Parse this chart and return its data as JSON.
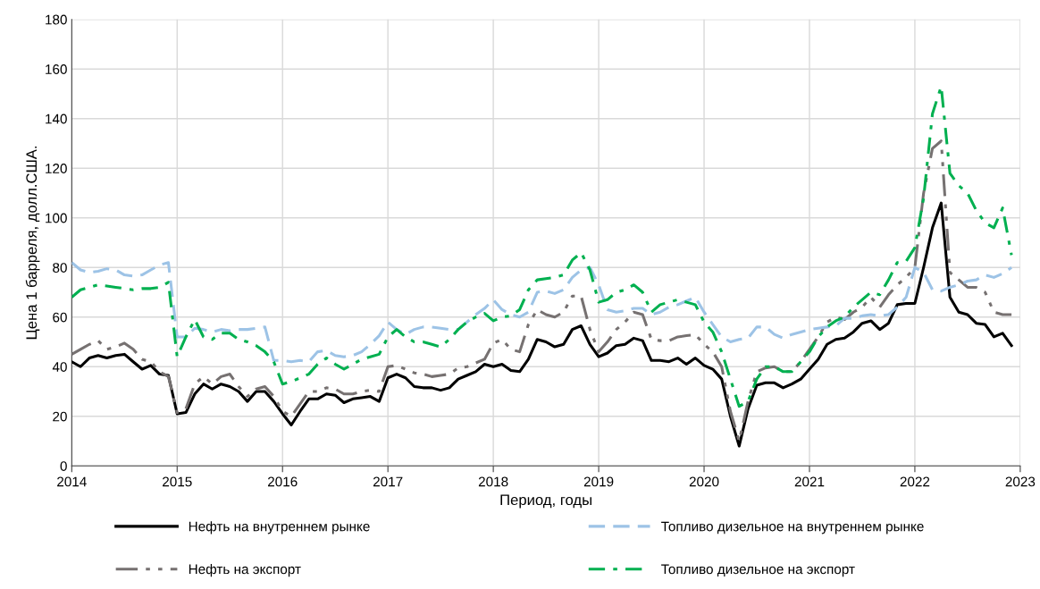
{
  "chart_data": {
    "type": "line",
    "xlabel": "Период, годы",
    "ylabel": "Цена 1 барреля, долл.США.",
    "x": [
      2014.0,
      2014.083,
      2014.167,
      2014.25,
      2014.333,
      2014.417,
      2014.5,
      2014.583,
      2014.667,
      2014.75,
      2014.833,
      2014.917,
      2015.0,
      2015.083,
      2015.167,
      2015.25,
      2015.333,
      2015.417,
      2015.5,
      2015.583,
      2015.667,
      2015.75,
      2015.833,
      2015.917,
      2016.0,
      2016.083,
      2016.167,
      2016.25,
      2016.333,
      2016.417,
      2016.5,
      2016.583,
      2016.667,
      2016.75,
      2016.833,
      2016.917,
      2017.0,
      2017.083,
      2017.167,
      2017.25,
      2017.333,
      2017.417,
      2017.5,
      2017.583,
      2017.667,
      2017.75,
      2017.833,
      2017.917,
      2018.0,
      2018.083,
      2018.167,
      2018.25,
      2018.333,
      2018.417,
      2018.5,
      2018.583,
      2018.667,
      2018.75,
      2018.833,
      2018.917,
      2019.0,
      2019.083,
      2019.167,
      2019.25,
      2019.333,
      2019.417,
      2019.5,
      2019.583,
      2019.667,
      2019.75,
      2019.833,
      2019.917,
      2020.0,
      2020.083,
      2020.167,
      2020.25,
      2020.333,
      2020.417,
      2020.5,
      2020.583,
      2020.667,
      2020.75,
      2020.833,
      2020.917,
      2021.0,
      2021.083,
      2021.167,
      2021.25,
      2021.333,
      2021.417,
      2021.5,
      2021.583,
      2021.667,
      2021.75,
      2021.833,
      2021.917,
      2022.0,
      2022.083,
      2022.167,
      2022.25,
      2022.333,
      2022.417,
      2022.5,
      2022.583,
      2022.667,
      2022.75,
      2022.833,
      2022.917
    ],
    "series": [
      {
        "name": "Нефть на внутреннем рынке",
        "color": "#000000",
        "line_style": "solid",
        "values": [
          42,
          40,
          43.5,
          44.5,
          43.5,
          44.5,
          45,
          42,
          39,
          40.5,
          37,
          36.5,
          21,
          21.5,
          29,
          33,
          31,
          33,
          32,
          30,
          26,
          30,
          30,
          26,
          21,
          16.5,
          22,
          27,
          27,
          29,
          28.5,
          25.5,
          27,
          27.5,
          28,
          26,
          35.5,
          37,
          35.5,
          32,
          31.5,
          31.5,
          30.5,
          31.5,
          35,
          36.5,
          38,
          41,
          40,
          41,
          38.5,
          38,
          43,
          51,
          50,
          48,
          49,
          55,
          56.5,
          49,
          44,
          45.5,
          48.5,
          49,
          51.5,
          50.5,
          42.5,
          42.5,
          42,
          43.5,
          41,
          43.5,
          40.5,
          39,
          35,
          20,
          8,
          23,
          32.5,
          33.5,
          33.5,
          31.5,
          33,
          35,
          39,
          43,
          49,
          51,
          51.5,
          54,
          57.5,
          58.5,
          55,
          57.5,
          65,
          65.5,
          65.5,
          80,
          96,
          106,
          68,
          62,
          61,
          57.5,
          57,
          52,
          53.5,
          48.5
        ]
      },
      {
        "name": "Нефть на экспорт",
        "color": "#767171",
        "line_style": "dashdotdot",
        "values": [
          45,
          47,
          49,
          50.5,
          47,
          48,
          49.5,
          47,
          43,
          42,
          38,
          36,
          21.5,
          23,
          33,
          36,
          33,
          36,
          37,
          32,
          28,
          31,
          32,
          28,
          22,
          20,
          25,
          30,
          30,
          31.5,
          31,
          29,
          29,
          30,
          30.5,
          30,
          40,
          40.5,
          39,
          37.5,
          37,
          36,
          36.5,
          37,
          39.5,
          40,
          41.5,
          43,
          49.5,
          51,
          47,
          46,
          57,
          63,
          61,
          60,
          62,
          68.5,
          68.5,
          55,
          46,
          50,
          55,
          58,
          62,
          61,
          51,
          50.5,
          50.5,
          52,
          52.5,
          53,
          49,
          46,
          40,
          22,
          10,
          26,
          38,
          39.5,
          40,
          38,
          38,
          42,
          47,
          52,
          58,
          60,
          59,
          62,
          64,
          68,
          64,
          69,
          73,
          76,
          80,
          110,
          128,
          131,
          78,
          75,
          72,
          72,
          70,
          62,
          61,
          61
        ]
      },
      {
        "name": "Топливо дизельное на внутреннем рынке",
        "color": "#9dc3e6",
        "line_style": "dashed",
        "values": [
          82,
          79,
          78,
          78.5,
          79.5,
          79,
          77,
          76.5,
          77,
          79,
          81,
          82,
          52,
          52,
          55.5,
          55,
          54,
          55,
          54.5,
          55,
          55,
          55.5,
          56,
          42.5,
          42.5,
          42,
          42.5,
          42,
          46,
          46.5,
          44.5,
          44,
          44.5,
          46,
          49,
          52.5,
          58,
          55,
          53,
          55,
          56,
          56,
          55.5,
          55,
          55,
          58,
          61,
          63.5,
          67,
          63,
          61,
          60,
          62,
          70,
          70.5,
          69.5,
          71,
          76,
          79,
          80,
          73,
          63,
          62,
          62.5,
          63.5,
          63.5,
          61,
          62,
          64,
          65,
          66.5,
          68,
          62,
          57,
          52,
          50,
          51,
          51.5,
          56,
          56,
          53,
          51.5,
          53,
          54,
          55,
          55.5,
          56,
          56.5,
          59.5,
          59.5,
          60.5,
          61,
          60.5,
          61,
          64,
          68,
          80,
          78,
          71,
          70.5,
          72,
          73,
          74.5,
          75,
          77,
          76,
          77.5,
          80
        ]
      },
      {
        "name": "Топливо дизельное на экспорт",
        "color": "#00b050",
        "line_style": "dashdot",
        "values": [
          68,
          71,
          72,
          73,
          72.5,
          72,
          71.5,
          71,
          71.5,
          71.5,
          72,
          74,
          44,
          52,
          59,
          52,
          51,
          53.5,
          53.5,
          51,
          50,
          48.5,
          46,
          42,
          33,
          34,
          35.5,
          37,
          41,
          43.5,
          41,
          39,
          41,
          43,
          44,
          45,
          52,
          55,
          52,
          50,
          50,
          49,
          48,
          51,
          55,
          58,
          60,
          61.5,
          58.5,
          60,
          60.5,
          63,
          71,
          75,
          75.5,
          76,
          77,
          83,
          86,
          79,
          66,
          67,
          70,
          71,
          73,
          70,
          62,
          65,
          66,
          67,
          66,
          65,
          58,
          54,
          46,
          35,
          24,
          26,
          35,
          40,
          40,
          38,
          38,
          42,
          46,
          52,
          56,
          58.5,
          60,
          64,
          67,
          70,
          69,
          75,
          82,
          82.5,
          88,
          108,
          142,
          153,
          118,
          113,
          110,
          103,
          98,
          96,
          104,
          85
        ]
      }
    ],
    "xlim": [
      2014,
      2023
    ],
    "xticks": [
      2014,
      2015,
      2016,
      2017,
      2018,
      2019,
      2020,
      2021,
      2022,
      2023
    ],
    "ylim": [
      0,
      180
    ],
    "yticks": [
      0,
      20,
      40,
      60,
      80,
      100,
      120,
      140,
      160,
      180
    ],
    "grid": true,
    "legend": "bottom"
  }
}
